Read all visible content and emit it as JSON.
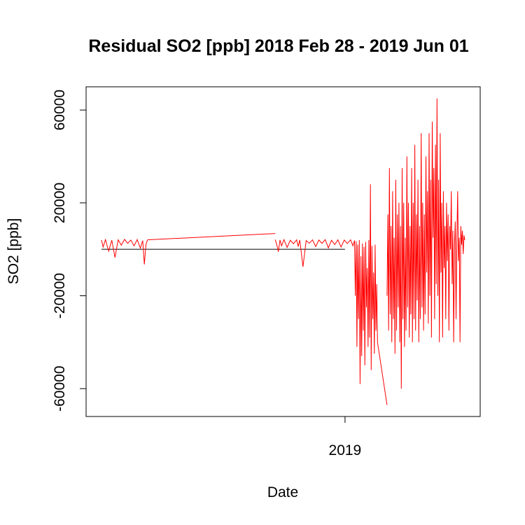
{
  "chart_data": {
    "type": "line",
    "title": "Residual SO2 [ppb] 2018 Feb 28 - 2019 Jun 01",
    "xlabel": "Date",
    "ylabel": "SO2 [ppb]",
    "xlim": [
      "2018-02-28",
      "2019-06-01"
    ],
    "ylim": [
      -72000,
      70000
    ],
    "yticks": [
      -60000,
      -20000,
      20000,
      60000
    ],
    "ytick_labels": [
      "-60000",
      "-20000",
      "20000",
      "60000"
    ],
    "xticks": [
      "2019-01-01"
    ],
    "xtick_labels": [
      "2019"
    ],
    "reference_line": {
      "y": 0,
      "x_end": "2019-01-01"
    },
    "line_color": "#ff0000",
    "axis_color": "#000000",
    "grid": false,
    "series": [
      {
        "segments": [
          {
            "x": [
              "2018-02-28",
              "2018-03-02",
              "2018-03-05",
              "2018-03-09",
              "2018-03-13",
              "2018-03-17",
              "2018-03-21",
              "2018-03-25",
              "2018-03-29",
              "2018-04-02",
              "2018-04-06",
              "2018-04-10",
              "2018-04-14",
              "2018-04-18",
              "2018-04-21",
              "2018-04-23",
              "2018-04-25",
              "2018-04-27"
            ],
            "y": [
              4000,
              1000,
              4200,
              -800,
              3900,
              -3500,
              4100,
              1800,
              4300,
              2600,
              4000,
              1500,
              4200,
              500,
              3800,
              -6500,
              2000,
              4100
            ]
          },
          {
            "x": [
              "2018-04-27",
              "2018-10-05"
            ],
            "y": [
              4100,
              6800
            ]
          },
          {
            "x": [
              "2018-10-05",
              "2018-10-07",
              "2018-10-09",
              "2018-10-11",
              "2018-10-13",
              "2018-10-16",
              "2018-10-20",
              "2018-10-24",
              "2018-10-28",
              "2018-11-01",
              "2018-11-03",
              "2018-11-05",
              "2018-11-09",
              "2018-11-13",
              "2018-11-17",
              "2018-11-21",
              "2018-11-25",
              "2018-11-29",
              "2018-12-03",
              "2018-12-07",
              "2018-12-11",
              "2018-12-15",
              "2018-12-19",
              "2018-12-23",
              "2018-12-27",
              "2018-12-31",
              "2019-01-04",
              "2019-01-08",
              "2019-01-11",
              "2019-01-13"
            ],
            "y": [
              4200,
              2000,
              -1000,
              4000,
              1500,
              4200,
              800,
              3900,
              2400,
              4100,
              1200,
              4000,
              -7500,
              3800,
              2600,
              4100,
              1200,
              4000,
              2600,
              4200,
              600,
              3900,
              2000,
              4100,
              1000,
              4000,
              2500,
              4100,
              1500,
              3800
            ]
          },
          {
            "x": [
              "2019-01-13",
              "2019-01-14",
              "2019-01-15",
              "2019-01-16",
              "2019-01-17",
              "2019-01-18",
              "2019-01-19",
              "2019-01-20",
              "2019-01-21",
              "2019-01-22",
              "2019-01-23",
              "2019-01-24",
              "2019-01-25",
              "2019-01-26",
              "2019-01-27",
              "2019-01-28",
              "2019-01-29",
              "2019-01-30",
              "2019-01-31",
              "2019-02-01",
              "2019-02-02",
              "2019-02-03",
              "2019-02-04",
              "2019-02-05",
              "2019-02-06",
              "2019-02-07",
              "2019-02-08",
              "2019-02-09",
              "2019-02-10",
              "2019-02-11"
            ],
            "y": [
              3800,
              -20000,
              3500,
              -42000,
              2000,
              -30000,
              4000,
              -58000,
              -3000,
              -46000,
              2500,
              -35000,
              1000,
              -50000,
              3200,
              -25000,
              -8000,
              -42000,
              4000,
              -38000,
              28000,
              -52000,
              1500,
              -30000,
              -10000,
              -45000,
              2000,
              -35000,
              -15000,
              -40000
            ]
          },
          {
            "x": [
              "2019-02-11",
              "2019-02-23"
            ],
            "y": [
              -40000,
              -67000
            ]
          },
          {
            "x": [
              "2019-02-23",
              "2019-02-24",
              "2019-02-25",
              "2019-02-26",
              "2019-02-27",
              "2019-02-28",
              "2019-03-01",
              "2019-03-02",
              "2019-03-03",
              "2019-03-04",
              "2019-03-05",
              "2019-03-06",
              "2019-03-07",
              "2019-03-08",
              "2019-03-09",
              "2019-03-10",
              "2019-03-11",
              "2019-03-12",
              "2019-03-13",
              "2019-03-14",
              "2019-03-15",
              "2019-03-16",
              "2019-03-17",
              "2019-03-18",
              "2019-03-19",
              "2019-03-20",
              "2019-03-21",
              "2019-03-22",
              "2019-03-23",
              "2019-03-24",
              "2019-03-25",
              "2019-03-26",
              "2019-03-27",
              "2019-03-28",
              "2019-03-29",
              "2019-03-30",
              "2019-03-31",
              "2019-04-01",
              "2019-04-02",
              "2019-04-03",
              "2019-04-04",
              "2019-04-05",
              "2019-04-06",
              "2019-04-07",
              "2019-04-08",
              "2019-04-09",
              "2019-04-10",
              "2019-04-11",
              "2019-04-12",
              "2019-04-13",
              "2019-04-14",
              "2019-04-15",
              "2019-04-16",
              "2019-04-17",
              "2019-04-18",
              "2019-04-19",
              "2019-04-20",
              "2019-04-21",
              "2019-04-22",
              "2019-04-23",
              "2019-04-24",
              "2019-04-25",
              "2019-04-26",
              "2019-04-27",
              "2019-04-28",
              "2019-04-29",
              "2019-04-30",
              "2019-05-01",
              "2019-05-02",
              "2019-05-03",
              "2019-05-04",
              "2019-05-05",
              "2019-05-06",
              "2019-05-07",
              "2019-05-08",
              "2019-05-09",
              "2019-05-10",
              "2019-05-11",
              "2019-05-12",
              "2019-05-13",
              "2019-05-14",
              "2019-05-15",
              "2019-05-16",
              "2019-05-17",
              "2019-05-18",
              "2019-05-19",
              "2019-05-20",
              "2019-05-21",
              "2019-05-22",
              "2019-05-23",
              "2019-05-24",
              "2019-05-25",
              "2019-05-26",
              "2019-05-27",
              "2019-05-28",
              "2019-05-29",
              "2019-05-30",
              "2019-05-31",
              "2019-06-01"
            ],
            "y": [
              -20000,
              15000,
              -35000,
              35000,
              -28000,
              10000,
              -40000,
              25000,
              -30000,
              5000,
              -45000,
              30000,
              -35000,
              15000,
              -25000,
              20000,
              -40000,
              10000,
              -60000,
              35000,
              -30000,
              20000,
              -42000,
              5000,
              -35000,
              40000,
              -25000,
              20000,
              -38000,
              10000,
              -28000,
              35000,
              -40000,
              20000,
              -30000,
              45000,
              -35000,
              15000,
              -22000,
              30000,
              -40000,
              10000,
              -30000,
              50000,
              -25000,
              20000,
              -35000,
              15000,
              -28000,
              40000,
              -10000,
              25000,
              -32000,
              50000,
              -20000,
              30000,
              -38000,
              55000,
              5000,
              35000,
              -30000,
              45000,
              -15000,
              65000,
              -20000,
              30000,
              -40000,
              50000,
              -10000,
              20000,
              -38000,
              25000,
              -8000,
              10000,
              -30000,
              20000,
              -5000,
              15000,
              -35000,
              10000,
              0,
              25000,
              -15000,
              8000,
              -40000,
              2000,
              12000,
              -30000,
              5000,
              25000,
              -5000,
              5000,
              -40000,
              10000,
              2000,
              8000,
              -2000,
              6000,
              4000
            ]
          }
        ]
      }
    ]
  }
}
